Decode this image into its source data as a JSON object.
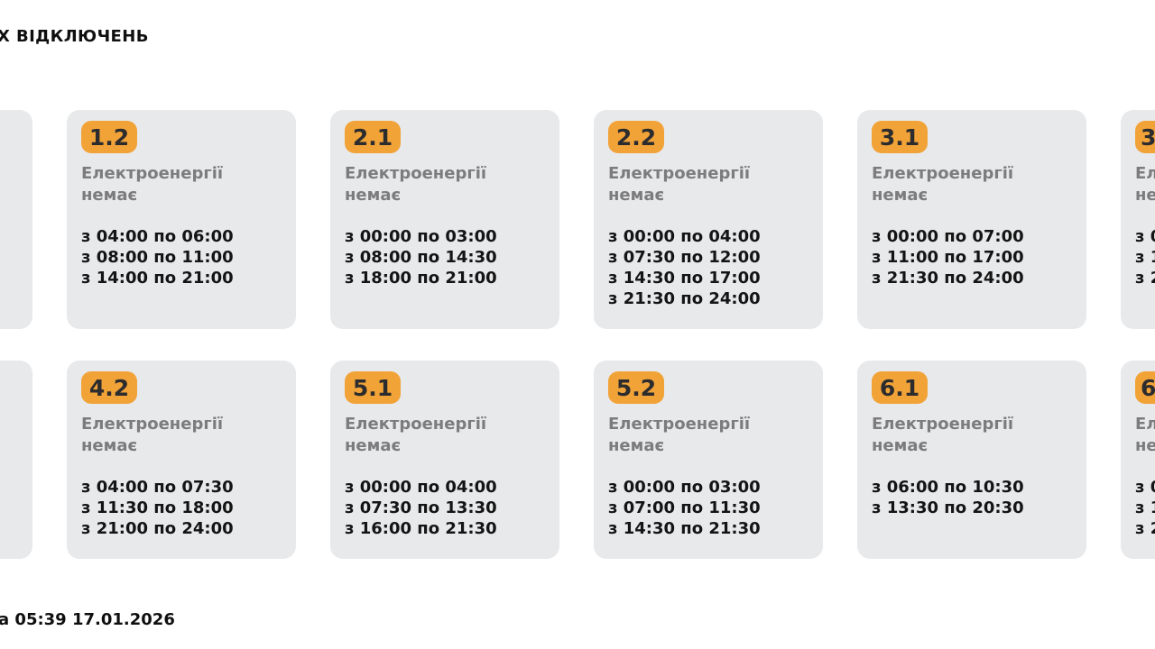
{
  "page": {
    "title": "Х ВІДКЛЮЧЕНЬ",
    "footer": "а 05:39 17.01.2026"
  },
  "colors": {
    "badge_orange": "#F1A338",
    "card_background": "#E8E9EB",
    "status_gray": "#7C7C7E",
    "time_black": "#141414",
    "page_background": "#FFFFFF"
  },
  "status": {
    "line1": "Електроенергії",
    "line2": "немає"
  },
  "grid": {
    "rows": [
      {
        "cards": [
          {
            "group": "",
            "show_content": false,
            "partial": "left",
            "lines": []
          },
          {
            "group": "1.2",
            "lines": [
              "з 04:00 по 06:00",
              "з 08:00 по 11:00",
              "з 14:00 по 21:00"
            ]
          },
          {
            "group": "2.1",
            "lines": [
              "з 00:00 по 03:00",
              "з 08:00 по 14:30",
              "з 18:00 по 21:00"
            ]
          },
          {
            "group": "2.2",
            "lines": [
              "з 00:00 по 04:00",
              "з 07:30 по 12:00",
              "з 14:30 по 17:00",
              "з 21:30 по 24:00"
            ]
          },
          {
            "group": "3.1",
            "lines": [
              "з 00:00 по 07:00",
              "з 11:00 по 17:00",
              "з 21:30 по 24:00"
            ]
          },
          {
            "group": "3",
            "partial": "right",
            "lines": [
              "з 0",
              "з 1",
              "з 2"
            ]
          }
        ]
      },
      {
        "cards": [
          {
            "group": "",
            "show_content": false,
            "partial": "left",
            "lines": []
          },
          {
            "group": "4.2",
            "lines": [
              "з 04:00 по 07:30",
              "з 11:30 по 18:00",
              "з 21:00 по 24:00"
            ]
          },
          {
            "group": "5.1",
            "lines": [
              "з 00:00 по 04:00",
              "з 07:30 по 13:30",
              "з 16:00 по 21:30"
            ]
          },
          {
            "group": "5.2",
            "lines": [
              "з 00:00 по 03:00",
              "з 07:00 по 11:30",
              "з 14:30 по 21:30"
            ]
          },
          {
            "group": "6.1",
            "lines": [
              "з 06:00 по 10:30",
              "з 13:30 по 20:30"
            ]
          },
          {
            "group": "6",
            "partial": "right",
            "lines": [
              "з 0",
              "з 1",
              "з 2"
            ]
          }
        ]
      }
    ]
  }
}
